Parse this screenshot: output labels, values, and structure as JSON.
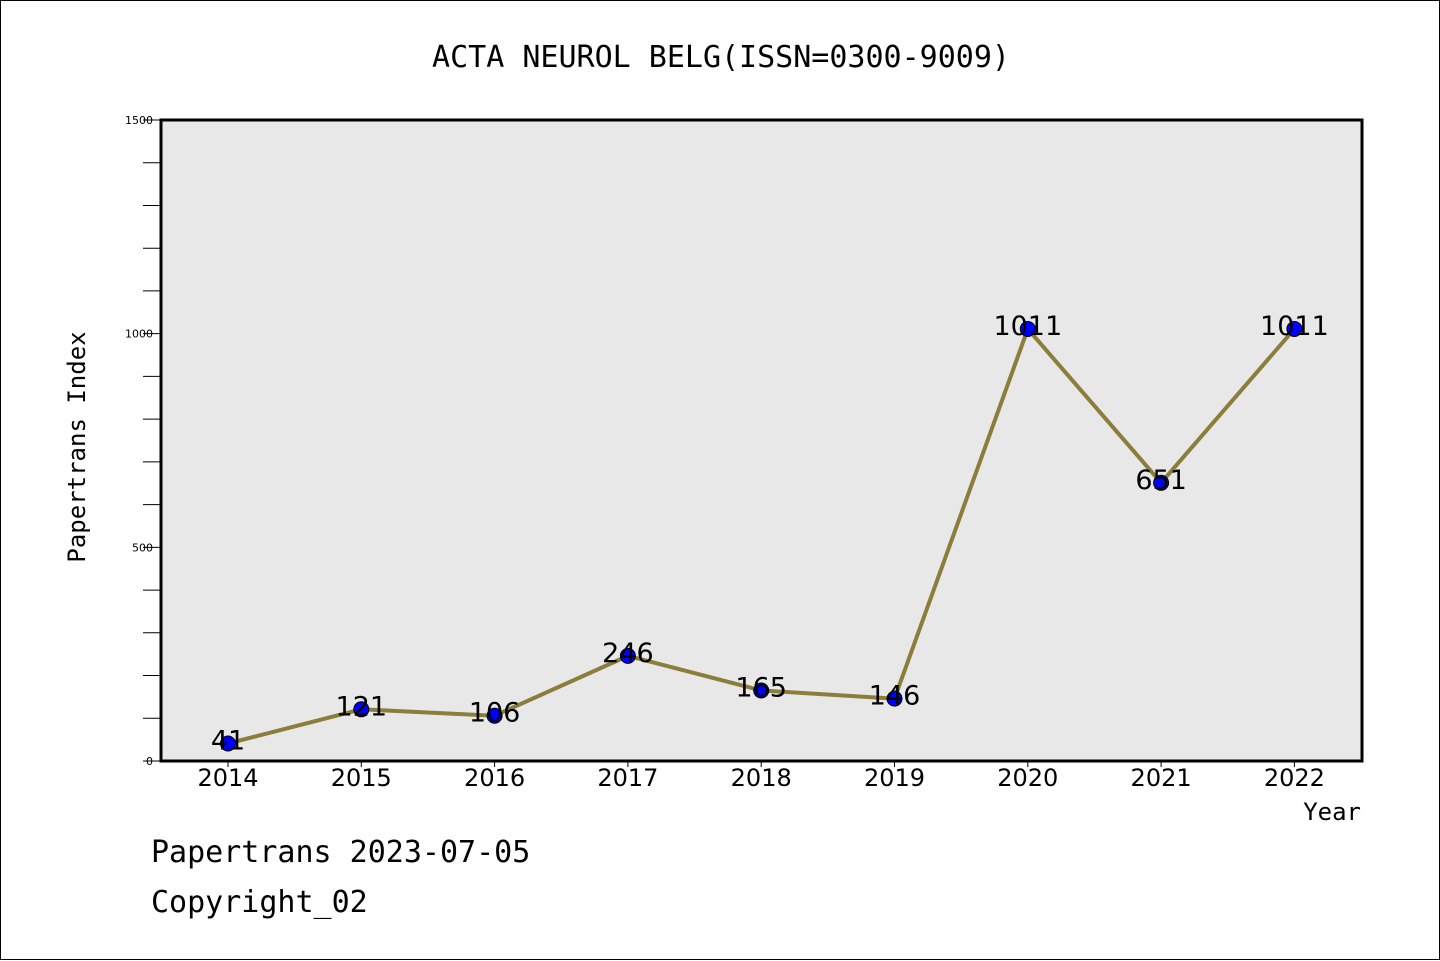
{
  "chart_data": {
    "type": "line",
    "title": "ACTA NEUROL BELG(ISSN=0300-9009)",
    "xlabel": "Year",
    "ylabel": "Papertrans Index",
    "x": [
      "2014",
      "2015",
      "2016",
      "2017",
      "2018",
      "2019",
      "2020",
      "2021",
      "2022"
    ],
    "values": [
      41,
      121,
      106,
      246,
      165,
      146,
      1011,
      651,
      1011
    ],
    "data_labels": [
      "41",
      "121",
      "106",
      "246",
      "165",
      "146",
      "1011",
      "651",
      "1011"
    ],
    "ylim": [
      0,
      1500
    ],
    "yticks": [
      "0",
      "500",
      "1000",
      "1500"
    ],
    "grid": false,
    "line_color": "#8b7d3a",
    "marker_color": "#0000ff",
    "plot_background": "#e8e8e8"
  },
  "footer": {
    "line1": "Papertrans 2023-07-05",
    "line2": "Copyright_02"
  }
}
